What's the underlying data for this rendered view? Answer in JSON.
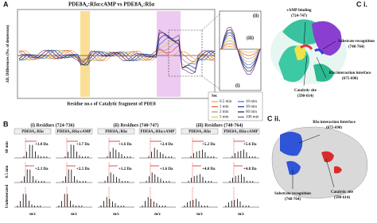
{
  "panel_a": {
    "label": "A",
    "title": "PDE8A₁:RIα:cAMP vs PDE8A₁:RIα",
    "y_label": "ΔD, Differences (No. of deuterons)",
    "x_label": "Residue no.s of Catalytic fragment of PDE8",
    "legend_title": "Sec",
    "legend": [
      {
        "name": "0.5 min",
        "color": "#f0a04b"
      },
      {
        "name": "1 min",
        "color": "#e8532b"
      },
      {
        "name": "2 min",
        "color": "#9a9a9a"
      },
      {
        "name": "5 min",
        "color": "#f4c430"
      },
      {
        "name": "10 min",
        "color": "#3b6fd4"
      },
      {
        "name": "30 min",
        "color": "#1d2f8c"
      },
      {
        "name": "60 min",
        "color": "#222222"
      },
      {
        "name": "100 min",
        "color": "#7b3fa0"
      }
    ],
    "inset_labels": [
      "(ii)",
      "(iii)",
      "(i)"
    ]
  },
  "panel_b": {
    "label": "B",
    "rows": [
      "60 min",
      "0.5 min",
      "Undeuterated"
    ],
    "groups": [
      {
        "title": "(i) Residues (724-736)",
        "columns": [
          {
            "name": "PDE8A₁:RIα",
            "shifts": [
              "+3.0 Da",
              "+2.3 Da"
            ],
            "x_label": "m/z"
          },
          {
            "name": "PDE8A₁:RIα:cAMP",
            "shifts": [
              "+3.7 Da",
              "+2.5 Da"
            ],
            "x_label": "m/z"
          }
        ]
      },
      {
        "title": "(ii) Residues (740-747)",
        "columns": [
          {
            "name": "PDE8A₁:RIα",
            "shifts": [
              "+1.6 Da",
              "+1.2 Da"
            ],
            "x_label": "m/z"
          },
          {
            "name": "PDE8A₁:RIα:cAMP",
            "shifts": [
              "+2.4 Da",
              "+1.6 Da"
            ],
            "x_label": "m/z"
          }
        ]
      },
      {
        "title": "(iii) Residues (748-764)",
        "columns": [
          {
            "name": "PDE8A₁:RIα",
            "shifts": [
              "+5.2 Da",
              "+4.0 Da"
            ],
            "x_label": "m/z"
          },
          {
            "name": "PDE8A₁:RIα:cAMP",
            "shifts": [
              "+5.6 Da",
              "+4.8 Da"
            ],
            "x_label": "m/z"
          }
        ]
      }
    ]
  },
  "panel_c1": {
    "label": "C i.",
    "labels": [
      {
        "name": "cAMP binding",
        "range": "(724-747)"
      },
      {
        "name": "Substrate recognition",
        "range": "(748-764)"
      },
      {
        "name": "RIα interaction interface",
        "range": "(675-690)"
      },
      {
        "name": "Catalytic site",
        "range": "(590-614)"
      }
    ]
  },
  "panel_c2": {
    "label": "C ii.",
    "labels": [
      {
        "name": "RIα interaction Interface",
        "range": "(675-690)"
      },
      {
        "name": "Substrate recognition",
        "range": "(748-764)"
      },
      {
        "name": "Catalytic site",
        "range": "(590-614)"
      }
    ]
  }
}
